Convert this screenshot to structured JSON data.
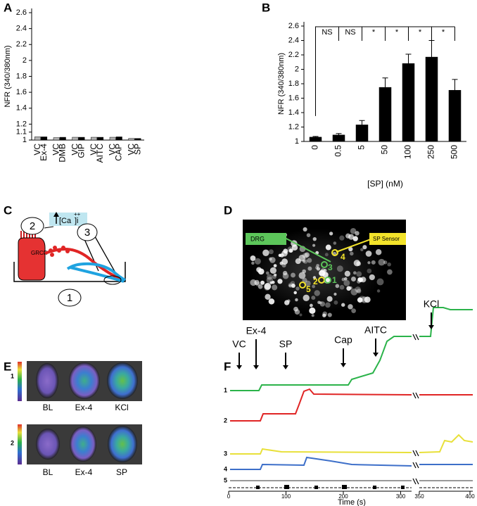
{
  "chart_data": [
    {
      "type": "bar",
      "label": "A",
      "ylabel": "NFR (340/380nm)",
      "categories": [
        "Ex-4",
        "DMB",
        "GIP",
        "AITC",
        "CAP",
        "SP"
      ],
      "series": [
        {
          "name": "VC",
          "color": "#b3b3b3",
          "values": [
            1.04,
            1.03,
            1.035,
            1.035,
            1.035,
            1.02
          ]
        },
        {
          "color": "#000000",
          "values": [
            1.04,
            1.035,
            1.035,
            1.035,
            1.04,
            1.02
          ]
        }
      ],
      "ylim": [
        1,
        2.6
      ],
      "yticks": [
        1,
        1.1,
        1.2,
        1.4,
        1.6,
        1.8,
        2,
        2.2,
        2.4,
        2.6
      ]
    },
    {
      "type": "bar",
      "label": "B",
      "ylabel": "NFR (340/380nm)",
      "xlabel": "[SP] (nM)",
      "categories": [
        "0",
        "0.5",
        "5",
        "50",
        "100",
        "250",
        "500"
      ],
      "series": [
        {
          "color": "#000000",
          "values": [
            1.06,
            1.09,
            1.23,
            1.75,
            2.08,
            2.17,
            1.71
          ],
          "errors": [
            0.01,
            0.02,
            0.06,
            0.13,
            0.13,
            0.23,
            0.15
          ]
        }
      ],
      "annotations": [
        "NS",
        "NS",
        "*",
        "*",
        "*",
        "*"
      ],
      "ylim": [
        1,
        2.6
      ],
      "yticks": [
        1,
        1.2,
        1.4,
        1.6,
        1.8,
        2,
        2.2,
        2.4,
        2.6
      ]
    }
  ],
  "panels": {
    "C": {
      "label": "C",
      "numbers": [
        "1",
        "2",
        "3"
      ],
      "calcium": "[Ca",
      "calcium_charge": "++",
      "calcium_suffix": "]i",
      "cell": "GRCR"
    },
    "D": {
      "label": "D",
      "drg": "DRG",
      "sensor": "SP Sensor",
      "cells": [
        "1",
        "2",
        "3",
        "4",
        "5"
      ]
    },
    "E": {
      "label": "E",
      "rows": [
        {
          "number": "1",
          "images": [
            "BL",
            "Ex-4",
            "KCl"
          ]
        },
        {
          "number": "2",
          "images": [
            "BL",
            "Ex-4",
            "SP"
          ]
        }
      ]
    },
    "F": {
      "label": "F",
      "stimuli": [
        "VC",
        "Ex-4",
        "SP",
        "Cap",
        "AITC",
        "KCl"
      ],
      "traces": [
        "1",
        "2",
        "3",
        "4",
        "5"
      ],
      "xlabel": "Time (s)",
      "xticks": [
        0,
        100,
        200,
        300,
        350,
        400
      ]
    }
  }
}
